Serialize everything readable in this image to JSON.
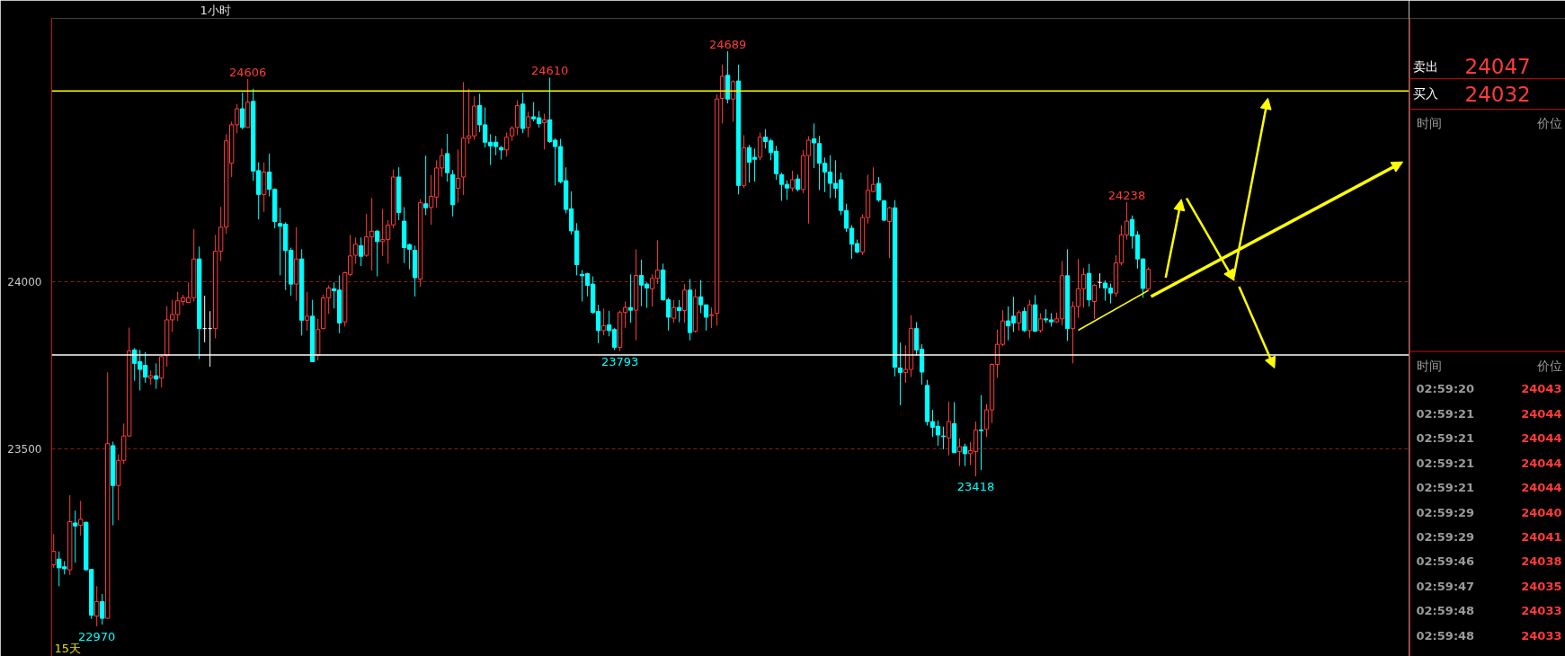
{
  "chart_data": {
    "type": "candlestick",
    "subtitle": "1小时",
    "categories": [
      null,
      null,
      null,
      null,
      null,
      null,
      null,
      null,
      null,
      null,
      null,
      null,
      null,
      null,
      null,
      null,
      null,
      null,
      null,
      null,
      null,
      null,
      null,
      null,
      null,
      null,
      null,
      null,
      null,
      null,
      null,
      null,
      null,
      null,
      null,
      null,
      null,
      null,
      null,
      null,
      null,
      null,
      null,
      null,
      null,
      null,
      null,
      null,
      null,
      null,
      null,
      null,
      null,
      null,
      null,
      null,
      null,
      null,
      null,
      null,
      null,
      null,
      null,
      null,
      null,
      null,
      null,
      null,
      null,
      null,
      null,
      null,
      null,
      null,
      null,
      null,
      null,
      null,
      null,
      null,
      null,
      null,
      null,
      null,
      null,
      null,
      null,
      null,
      null,
      null,
      null,
      null,
      null,
      null,
      null,
      null,
      null,
      null,
      null,
      null,
      null,
      null,
      null,
      null,
      null,
      null,
      null,
      null,
      null,
      null,
      null,
      null,
      null,
      null,
      null,
      null,
      null,
      null,
      null,
      null,
      null,
      null,
      null,
      null,
      null,
      null,
      null,
      null,
      null,
      null,
      null,
      null,
      null,
      null,
      null,
      null,
      null,
      null,
      null,
      null,
      null,
      null,
      null,
      null,
      null,
      null,
      null,
      null,
      null,
      null,
      null,
      null,
      null,
      null,
      null,
      null,
      null,
      null,
      null,
      null,
      null,
      null,
      null,
      null,
      null,
      null,
      null,
      null,
      null,
      null,
      null,
      null,
      null,
      null,
      null,
      null,
      null,
      null,
      null,
      null,
      null,
      null,
      null,
      null,
      null,
      null,
      null,
      null,
      null,
      null,
      null,
      null,
      null,
      null,
      null,
      null,
      null,
      null,
      null,
      null,
      null,
      null,
      null,
      null
    ],
    "ohlc": [
      [
        23154,
        23246,
        23145,
        23194
      ],
      [
        23171,
        23194,
        23090,
        23145
      ],
      [
        23148,
        23165,
        23125,
        23142
      ],
      [
        23139,
        23362,
        23123,
        23283
      ],
      [
        23279,
        23316,
        23160,
        23270
      ],
      [
        23272,
        23345,
        23241,
        23290
      ],
      [
        23281,
        23283,
        23137,
        23139
      ],
      [
        23140,
        23142,
        22992,
        23003
      ],
      [
        23001,
        23090,
        22970,
        23044
      ],
      [
        23044,
        23067,
        22975,
        22994
      ],
      [
        22994,
        23729,
        22992,
        23516
      ],
      [
        23510,
        23522,
        23272,
        23391
      ],
      [
        23391,
        23484,
        23287,
        23466
      ],
      [
        23466,
        23576,
        23455,
        23539
      ],
      [
        23539,
        23863,
        23536,
        23793
      ],
      [
        23796,
        23802,
        23704,
        23756
      ],
      [
        23761,
        23796,
        23675,
        23738
      ],
      [
        23750,
        23790,
        23698,
        23715
      ],
      [
        23712,
        23735,
        23692,
        23719
      ],
      [
        23719,
        23756,
        23680,
        23709
      ],
      [
        23712,
        23779,
        23684,
        23776
      ],
      [
        23779,
        23927,
        23746,
        23886
      ],
      [
        23886,
        23946,
        23850,
        23902
      ],
      [
        23902,
        23970,
        23883,
        23943
      ],
      [
        23941,
        23961,
        23929,
        23952
      ],
      [
        23938,
        23998,
        23938,
        23952
      ],
      [
        23952,
        24158,
        23941,
        24068
      ],
      [
        24068,
        24105,
        23769,
        23860
      ],
      [
        23860,
        23958,
        23819,
        23860
      ],
      [
        23860,
        23912,
        23746,
        23860
      ],
      [
        23860,
        24140,
        23831,
        24091
      ],
      [
        24091,
        24224,
        24062,
        24163
      ],
      [
        24163,
        24441,
        24143,
        24421
      ],
      [
        24354,
        24479,
        24313,
        24469
      ],
      [
        24469,
        24531,
        24444,
        24517
      ],
      [
        24517,
        24565,
        24456,
        24461
      ],
      [
        24461,
        24606,
        24461,
        24537
      ],
      [
        24539,
        24577,
        24302,
        24331
      ],
      [
        24332,
        24357,
        24186,
        24261
      ],
      [
        24261,
        24357,
        24209,
        24328
      ],
      [
        24328,
        24383,
        24255,
        24276
      ],
      [
        24276,
        24279,
        24160,
        24180
      ],
      [
        24174,
        24221,
        24019,
        24166
      ],
      [
        24172,
        24178,
        23975,
        24093
      ],
      [
        24094,
        24102,
        23958,
        23993
      ],
      [
        23993,
        24163,
        23943,
        24068
      ],
      [
        24068,
        24097,
        23839,
        23885
      ],
      [
        23885,
        23970,
        23854,
        23897
      ],
      [
        23897,
        23946,
        23761,
        23761
      ],
      [
        23781,
        23889,
        23765,
        23857
      ],
      [
        23860,
        23961,
        23857,
        23952
      ],
      [
        23952,
        23989,
        23904,
        23981
      ],
      [
        23979,
        23998,
        23920,
        23973
      ],
      [
        23975,
        24019,
        23846,
        23877
      ],
      [
        23880,
        24030,
        23866,
        24027
      ],
      [
        24022,
        24140,
        24016,
        24077
      ],
      [
        24079,
        24132,
        24054,
        24112
      ],
      [
        24108,
        24132,
        24047,
        24076
      ],
      [
        24079,
        24203,
        24074,
        24134
      ],
      [
        24134,
        24250,
        24033,
        24151
      ],
      [
        24151,
        24155,
        24016,
        24120
      ],
      [
        24120,
        24218,
        24077,
        24126
      ],
      [
        24126,
        24184,
        24054,
        24169
      ],
      [
        24170,
        24336,
        24160,
        24313
      ],
      [
        24313,
        24342,
        24184,
        24207
      ],
      [
        24181,
        24223,
        24056,
        24102
      ],
      [
        24111,
        24114,
        24037,
        24097
      ],
      [
        24094,
        24108,
        23956,
        24012
      ],
      [
        24008,
        24247,
        23985,
        24236
      ],
      [
        24233,
        24377,
        24199,
        24221
      ],
      [
        24222,
        24319,
        24170,
        24255
      ],
      [
        24253,
        24363,
        24221,
        24340
      ],
      [
        24340,
        24398,
        24314,
        24377
      ],
      [
        24383,
        24442,
        24299,
        24326
      ],
      [
        24320,
        24334,
        24195,
        24230
      ],
      [
        24279,
        24395,
        24236,
        24309
      ],
      [
        24313,
        24597,
        24259,
        24429
      ],
      [
        24429,
        24577,
        24412,
        24436
      ],
      [
        24436,
        24554,
        24424,
        24525
      ],
      [
        24527,
        24562,
        24447,
        24469
      ],
      [
        24469,
        24521,
        24401,
        24417
      ],
      [
        24417,
        24441,
        24349,
        24406
      ],
      [
        24417,
        24436,
        24378,
        24404
      ],
      [
        24401,
        24406,
        24365,
        24394
      ],
      [
        24394,
        24446,
        24374,
        24432
      ],
      [
        24436,
        24465,
        24421,
        24459
      ],
      [
        24461,
        24542,
        24438,
        24527
      ],
      [
        24531,
        24565,
        24444,
        24458
      ],
      [
        24461,
        24508,
        24432,
        24493
      ],
      [
        24493,
        24537,
        24479,
        24487
      ],
      [
        24490,
        24510,
        24461,
        24473
      ],
      [
        24475,
        24502,
        24395,
        24484
      ],
      [
        24484,
        24610,
        24415,
        24419
      ],
      [
        24423,
        24429,
        24288,
        24404
      ],
      [
        24404,
        24427,
        24294,
        24299
      ],
      [
        24302,
        24342,
        24204,
        24216
      ],
      [
        24218,
        24270,
        24141,
        24152
      ],
      [
        24152,
        24175,
        24019,
        24051
      ],
      [
        24022,
        24035,
        23941,
        24018
      ],
      [
        24024,
        24027,
        23956,
        23989
      ],
      [
        23993,
        24016,
        23904,
        23908
      ],
      [
        23911,
        23931,
        23816,
        23854
      ],
      [
        23854,
        23920,
        23840,
        23869
      ],
      [
        23871,
        23913,
        23837,
        23854
      ],
      [
        23857,
        23862,
        23796,
        23804
      ],
      [
        23804,
        23914,
        23793,
        23908
      ],
      [
        23908,
        23941,
        23862,
        23923
      ],
      [
        23923,
        24022,
        23877,
        23915
      ],
      [
        23915,
        24097,
        23825,
        24019
      ],
      [
        24019,
        24066,
        23927,
        23990
      ],
      [
        23993,
        23998,
        23922,
        23981
      ],
      [
        23979,
        24022,
        23926,
        24010
      ],
      [
        24010,
        24124,
        23993,
        24035
      ],
      [
        24035,
        24054,
        23943,
        23946
      ],
      [
        23946,
        23952,
        23854,
        23894
      ],
      [
        23891,
        23945,
        23877,
        23923
      ],
      [
        23923,
        23945,
        23879,
        23914
      ],
      [
        23914,
        23993,
        23877,
        23975
      ],
      [
        23975,
        24008,
        23825,
        23848
      ],
      [
        23852,
        23978,
        23848,
        23955
      ],
      [
        23955,
        24005,
        23906,
        23931
      ],
      [
        23931,
        23931,
        23854,
        23894
      ],
      [
        23899,
        23923,
        23862,
        23901
      ],
      [
        23906,
        24560,
        23869,
        24546
      ],
      [
        24548,
        24649,
        24473,
        24614
      ],
      [
        24617,
        24689,
        24533,
        24546
      ],
      [
        24546,
        24602,
        24479,
        24598
      ],
      [
        24600,
        24649,
        24261,
        24288
      ],
      [
        24288,
        24438,
        24280,
        24400
      ],
      [
        24401,
        24409,
        24296,
        24357
      ],
      [
        24372,
        24398,
        24299,
        24366
      ],
      [
        24372,
        24446,
        24363,
        24432
      ],
      [
        24432,
        24456,
        24398,
        24419
      ],
      [
        24421,
        24427,
        24363,
        24386
      ],
      [
        24390,
        24406,
        24305,
        24323
      ],
      [
        24320,
        24326,
        24242,
        24291
      ],
      [
        24291,
        24303,
        24245,
        24280
      ],
      [
        24280,
        24332,
        24270,
        24305
      ],
      [
        24307,
        24320,
        24270,
        24276
      ],
      [
        24276,
        24394,
        24265,
        24377
      ],
      [
        24377,
        24435,
        24174,
        24423
      ],
      [
        24427,
        24473,
        24340,
        24415
      ],
      [
        24413,
        24436,
        24274,
        24354
      ],
      [
        24354,
        24371,
        24268,
        24328
      ],
      [
        24328,
        24378,
        24250,
        24294
      ],
      [
        24294,
        24363,
        24250,
        24279
      ],
      [
        24305,
        24326,
        24199,
        24213
      ],
      [
        24213,
        24233,
        24149,
        24160
      ],
      [
        24160,
        24169,
        24068,
        24112
      ],
      [
        24114,
        24126,
        24085,
        24089
      ],
      [
        24089,
        24201,
        24080,
        24192
      ],
      [
        24192,
        24320,
        24174,
        24273
      ],
      [
        24270,
        24342,
        24267,
        24291
      ],
      [
        24294,
        24313,
        24239,
        24244
      ],
      [
        24242,
        24244,
        24181,
        24184
      ],
      [
        24180,
        24224,
        24071,
        24221
      ],
      [
        24221,
        24244,
        23717,
        23744
      ],
      [
        23742,
        23818,
        23631,
        23729
      ],
      [
        23729,
        23810,
        23698,
        23738
      ],
      [
        23738,
        23900,
        23715,
        23860
      ],
      [
        23860,
        23879,
        23779,
        23796
      ],
      [
        23798,
        23813,
        23692,
        23730
      ],
      [
        23690,
        23707,
        23570,
        23582
      ],
      [
        23582,
        23617,
        23536,
        23565
      ],
      [
        23568,
        23585,
        23510,
        23542
      ],
      [
        23539,
        23567,
        23499,
        23537
      ],
      [
        23533,
        23642,
        23481,
        23582
      ],
      [
        23576,
        23640,
        23489,
        23489
      ],
      [
        23492,
        23532,
        23449,
        23507
      ],
      [
        23507,
        23516,
        23449,
        23486
      ],
      [
        23486,
        23521,
        23452,
        23495
      ],
      [
        23492,
        23582,
        23418,
        23557
      ],
      [
        23557,
        23661,
        23437,
        23555
      ],
      [
        23559,
        23634,
        23536,
        23617
      ],
      [
        23617,
        23756,
        23578,
        23753
      ],
      [
        23753,
        23857,
        23713,
        23813
      ],
      [
        23813,
        23915,
        23808,
        23883
      ],
      [
        23883,
        23926,
        23825,
        23868
      ],
      [
        23897,
        23955,
        23850,
        23877
      ],
      [
        23877,
        23915,
        23854,
        23908
      ],
      [
        23911,
        23923,
        23850,
        23854
      ],
      [
        23854,
        23946,
        23831,
        23931
      ],
      [
        23931,
        23960,
        23850,
        23852
      ],
      [
        23854,
        23906,
        23848,
        23889
      ],
      [
        23889,
        23918,
        23877,
        23886
      ],
      [
        23886,
        23906,
        23866,
        23880
      ],
      [
        23880,
        23908,
        23877,
        23889
      ],
      [
        23889,
        24062,
        23869,
        24018
      ],
      [
        24018,
        24097,
        23823,
        23860
      ],
      [
        23860,
        23941,
        23756,
        23926
      ],
      [
        23926,
        24068,
        23892,
        23979
      ],
      [
        23979,
        24041,
        23923,
        24022
      ],
      [
        24025,
        24053,
        23926,
        23946
      ],
      [
        23941,
        23993,
        23889,
        23989
      ],
      [
        23998,
        24025,
        23981,
        23998
      ],
      [
        23996,
        24004,
        23943,
        23981
      ],
      [
        23981,
        23995,
        23935,
        23966
      ],
      [
        23966,
        24079,
        23955,
        24056
      ],
      [
        24056,
        24169,
        24049,
        24140
      ],
      [
        24140,
        24238,
        24126,
        24181
      ],
      [
        24186,
        24198,
        24099,
        24137
      ],
      [
        24140,
        24151,
        24039,
        24068
      ],
      [
        24068,
        24070,
        23952,
        23980
      ],
      [
        23978,
        24043,
        23975,
        24037
      ]
    ],
    "colors": [
      "#ff3b3b",
      "#00ffff",
      "#00ffff",
      "#ff3b3b",
      "#00ffff",
      "#ff3b3b",
      "#00ffff",
      "#00ffff",
      "#ff3b3b",
      "#00ffff",
      "#ff3b3b",
      "#00ffff",
      "#ff3b3b",
      "#ff3b3b",
      "#ff3b3b",
      "#00ffff",
      "#00ffff",
      "#00ffff",
      "#ff3b3b",
      "#00ffff",
      "#ff3b3b",
      "#ff3b3b",
      "#ff3b3b",
      "#ff3b3b",
      "#ff3b3b",
      "#ff3b3b",
      "#ff3b3b",
      "#00ffff",
      "#ffffff",
      "#ffffff",
      "#ff3b3b",
      "#ff3b3b",
      "#ff3b3b",
      "#ff3b3b",
      "#ff3b3b",
      "#00ffff",
      "#ff3b3b",
      "#00ffff",
      "#00ffff",
      "#ff3b3b",
      "#00ffff",
      "#00ffff",
      "#00ffff",
      "#00ffff",
      "#00ffff",
      "#ff3b3b",
      "#00ffff",
      "#ff3b3b",
      "#00ffff",
      "#ff3b3b",
      "#ff3b3b",
      "#ff3b3b",
      "#00ffff",
      "#00ffff",
      "#ff3b3b",
      "#ff3b3b",
      "#ff3b3b",
      "#00ffff",
      "#ff3b3b",
      "#ff3b3b",
      "#00ffff",
      "#ff3b3b",
      "#ff3b3b",
      "#ff3b3b",
      "#00ffff",
      "#00ffff",
      "#00ffff",
      "#00ffff",
      "#ff3b3b",
      "#00ffff",
      "#ff3b3b",
      "#ff3b3b",
      "#ff3b3b",
      "#00ffff",
      "#00ffff",
      "#ff3b3b",
      "#ff3b3b",
      "#ff3b3b",
      "#ff3b3b",
      "#00ffff",
      "#00ffff",
      "#00ffff",
      "#00ffff",
      "#00ffff",
      "#ff3b3b",
      "#ff3b3b",
      "#ff3b3b",
      "#00ffff",
      "#ff3b3b",
      "#00ffff",
      "#00ffff",
      "#ff3b3b",
      "#00ffff",
      "#00ffff",
      "#00ffff",
      "#00ffff",
      "#00ffff",
      "#00ffff",
      "#00ffff",
      "#00ffff",
      "#00ffff",
      "#00ffff",
      "#ff3b3b",
      "#00ffff",
      "#00ffff",
      "#ff3b3b",
      "#ff3b3b",
      "#00ffff",
      "#ff3b3b",
      "#00ffff",
      "#00ffff",
      "#ff3b3b",
      "#ff3b3b",
      "#00ffff",
      "#00ffff",
      "#ff3b3b",
      "#00ffff",
      "#ff3b3b",
      "#00ffff",
      "#ff3b3b",
      "#00ffff",
      "#00ffff",
      "#ff3b3b",
      "#ff3b3b",
      "#ff3b3b",
      "#00ffff",
      "#ff3b3b",
      "#00ffff",
      "#ff3b3b",
      "#00ffff",
      "#00ffff",
      "#ff3b3b",
      "#00ffff",
      "#00ffff",
      "#00ffff",
      "#00ffff",
      "#00ffff",
      "#ff3b3b",
      "#00ffff",
      "#ff3b3b",
      "#ff3b3b",
      "#00ffff",
      "#00ffff",
      "#00ffff",
      "#00ffff",
      "#00ffff",
      "#00ffff",
      "#00ffff",
      "#00ffff",
      "#00ffff",
      "#ff3b3b",
      "#ff3b3b",
      "#ff3b3b",
      "#00ffff",
      "#00ffff",
      "#ff3b3b",
      "#00ffff",
      "#00ffff",
      "#ff3b3b",
      "#ff3b3b",
      "#00ffff",
      "#00ffff",
      "#00ffff",
      "#00ffff",
      "#00ffff",
      "#00ffff",
      "#ff3b3b",
      "#00ffff",
      "#ff3b3b",
      "#00ffff",
      "#ff3b3b",
      "#ff3b3b",
      "#00ffff",
      "#ff3b3b",
      "#ff3b3b",
      "#ff3b3b",
      "#ff3b3b",
      "#00ffff",
      "#00ffff",
      "#ff3b3b",
      "#00ffff",
      "#ff3b3b",
      "#00ffff",
      "#ff3b3b",
      "#00ffff",
      "#00ffff",
      "#ff3b3b",
      "#ff3b3b",
      "#00ffff",
      "#ff3b3b",
      "#ff3b3b",
      "#ff3b3b",
      "#00ffff",
      "#ff3b3b",
      "#ffffff",
      "#00ffff",
      "#00ffff",
      "#ff3b3b",
      "#ff3b3b",
      "#ff3b3b",
      "#00ffff",
      "#00ffff",
      "#00ffff",
      "#ff3b3b"
    ],
    "series": [
      {
        "type": "line",
        "color": "#ffff00",
        "values": [
          null,
          null,
          null,
          null,
          null,
          null,
          null,
          null,
          null,
          null,
          null,
          null,
          null,
          null,
          null,
          null,
          null,
          null,
          null,
          null,
          null,
          null,
          null,
          null,
          null,
          null,
          null,
          null,
          null,
          null,
          null,
          null,
          null,
          null,
          null,
          null,
          null,
          null,
          null,
          null,
          null,
          null,
          null,
          null,
          null,
          null,
          null,
          null,
          null,
          null,
          null,
          null,
          null,
          null,
          null,
          null,
          null,
          null,
          null,
          null,
          null,
          null,
          null,
          null,
          null,
          null,
          null,
          null,
          null,
          null,
          null,
          null,
          null,
          null,
          null,
          null,
          null,
          null,
          null,
          null,
          null,
          null,
          null,
          null,
          null,
          null,
          null,
          null,
          null,
          null,
          null,
          null,
          null,
          null,
          null,
          null,
          null,
          null,
          null,
          null,
          null,
          null,
          null,
          null,
          null,
          null,
          null,
          null,
          null,
          null,
          null,
          null,
          null,
          null,
          null,
          null,
          null,
          null,
          null,
          null,
          null,
          null,
          null,
          null,
          null,
          null,
          null,
          null,
          null,
          null,
          null,
          null,
          null,
          null,
          null,
          null,
          null,
          null,
          null,
          null,
          null,
          null,
          null,
          null,
          null,
          null,
          null,
          null,
          null,
          null,
          null,
          null,
          null,
          null,
          null,
          null,
          null,
          null,
          null,
          null,
          null,
          null,
          null,
          null,
          null,
          null,
          null,
          null,
          null,
          null,
          null,
          null,
          null,
          null,
          null,
          null,
          null,
          null,
          null,
          null,
          null,
          null,
          null,
          null,
          null,
          null,
          null,
          null,
          null,
          null,
          23855,
          null,
          null,
          null,
          null,
          null,
          null,
          null,
          null,
          null,
          null,
          null,
          null,
          23974
        ]
      }
    ],
    "ref_lines": [
      {
        "axis": "y",
        "value": 24570,
        "color": "#ffff00"
      },
      {
        "axis": "y",
        "value": 23781,
        "color": "#ffffff"
      }
    ],
    "ylim": [
      22880,
      24787
    ],
    "yticks": [
      23500,
      24000
    ],
    "grid": "y",
    "annotations": [
      "15天",
      {
        "text": "24606",
        "y": 24606
      },
      {
        "text": "24610",
        "y": 24610
      },
      {
        "text": "24689",
        "y": 24689
      },
      {
        "text": "24238",
        "y": 24238
      },
      {
        "text": "23793",
        "y": 23793
      },
      {
        "text": "23418",
        "y": 23418
      },
      {
        "text": "22970",
        "y": 22970
      },
      "卖出",
      "24047",
      "买入",
      "24032",
      "时间",
      "价位",
      "时间",
      "价位",
      "02:59:20",
      "24043",
      "02:59:21",
      "24044",
      "02:59:21",
      "24044",
      "02:59:21",
      "24044",
      "02:59:21",
      "24044",
      "02:59:29",
      "24040",
      "02:59:29",
      "24041",
      "02:59:46",
      "24038",
      "02:59:47",
      "24035",
      "02:59:48",
      "24033",
      "02:59:48",
      "24033"
    ]
  }
}
